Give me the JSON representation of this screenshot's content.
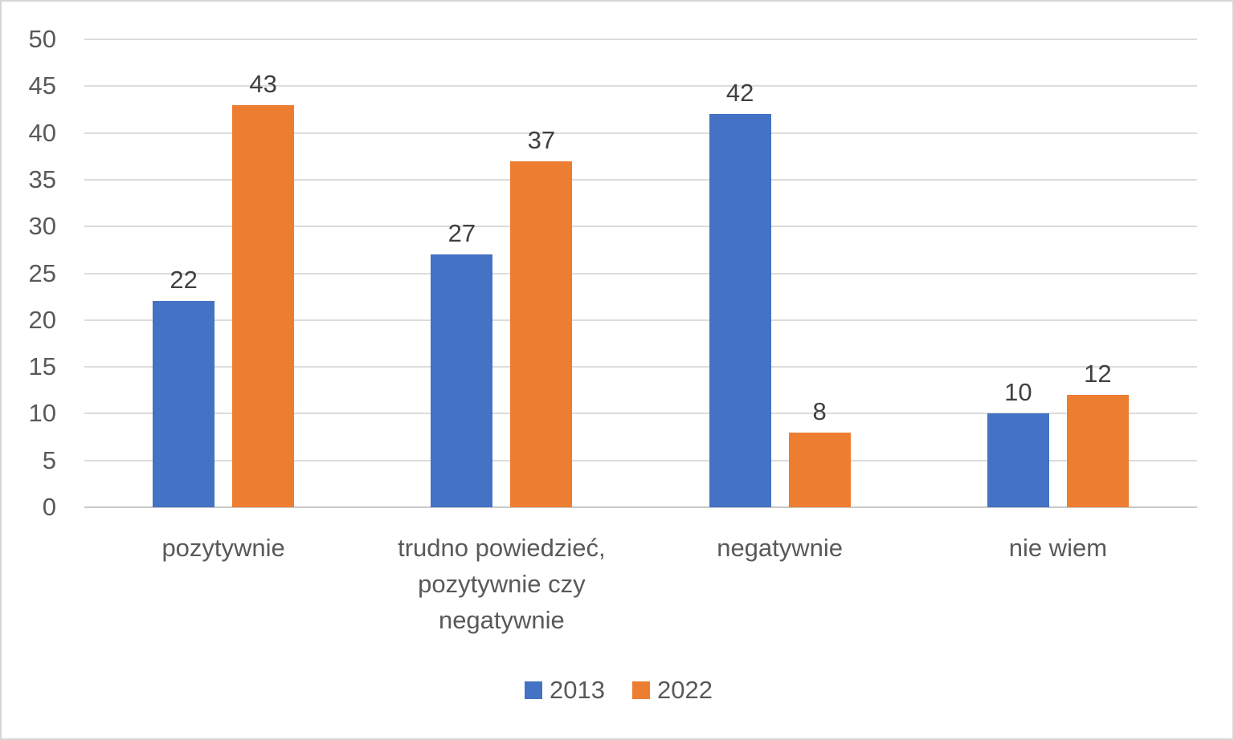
{
  "chart_data": {
    "type": "bar",
    "categories": [
      "pozytywnie",
      "trudno powiedzieć, pozytywnie czy negatywnie",
      "negatywnie",
      "nie wiem"
    ],
    "series": [
      {
        "name": "2013",
        "color": "#4472C4",
        "values": [
          22,
          27,
          42,
          10
        ]
      },
      {
        "name": "2022",
        "color": "#ED7D31",
        "values": [
          43,
          37,
          8,
          12
        ]
      }
    ],
    "data_labels_shown": true,
    "title": "",
    "xlabel": "",
    "ylabel": "",
    "ylim": [
      0,
      50
    ],
    "ytick_step": 5,
    "yticks": [
      "0",
      "5",
      "10",
      "15",
      "20",
      "25",
      "30",
      "35",
      "40",
      "45",
      "50"
    ],
    "grid": true,
    "legend_position": "bottom"
  },
  "colors": {
    "series_2013": "#4472C4",
    "series_2022": "#ED7D31",
    "gridline": "#dcdcdc",
    "axis_baseline": "#c9c9c9",
    "tick_label_text": "#595959",
    "data_label_text": "#404040",
    "page_border": "#d6d6d6",
    "background": "#ffffff"
  }
}
